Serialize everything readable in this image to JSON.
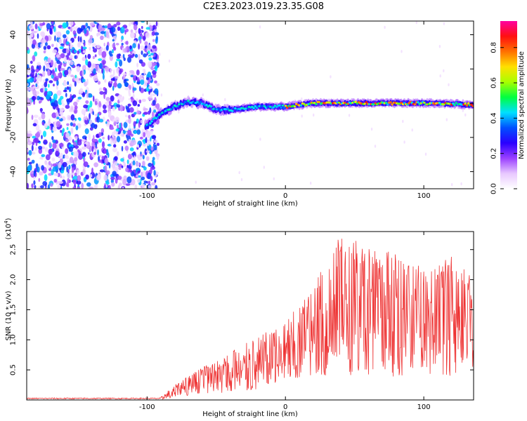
{
  "figure": {
    "title": "C2E3.2023.019.23.35.G08"
  },
  "chart_data": [
    {
      "type": "heatmap",
      "title": "",
      "xlabel": "Height of straight line (km)",
      "ylabel": "Frequency (Hz)",
      "xlim": [
        -187,
        136
      ],
      "ylim": [
        -50,
        48
      ],
      "x_ticks": [
        -100,
        0,
        100
      ],
      "y_ticks": [
        -40,
        -20,
        0,
        20,
        40
      ],
      "grid": false,
      "noise_region_end_km": -95,
      "ridge": {
        "description_points": [
          {
            "x": -100,
            "y": -13
          },
          {
            "x": -90,
            "y": -6
          },
          {
            "x": -80,
            "y": -2
          },
          {
            "x": -70,
            "y": 1
          },
          {
            "x": -60,
            "y": 0
          },
          {
            "x": -50,
            "y": -4
          },
          {
            "x": -40,
            "y": -4
          },
          {
            "x": -30,
            "y": -3
          },
          {
            "x": -20,
            "y": -2
          },
          {
            "x": 0,
            "y": -2
          },
          {
            "x": 20,
            "y": 0
          },
          {
            "x": 50,
            "y": 0
          },
          {
            "x": 80,
            "y": 0
          },
          {
            "x": 110,
            "y": 0
          },
          {
            "x": 136,
            "y": -1
          }
        ]
      },
      "colorbar": {
        "label": "Normalized spectral amplitude",
        "range": [
          0.0,
          0.95
        ],
        "ticks": [
          0.0,
          0.2,
          0.4,
          0.6,
          0.8
        ],
        "tick_labels": [
          "0.0",
          "0.2",
          "0.4",
          "0.6",
          "0.8"
        ],
        "colormap_stops": [
          "#ffffff",
          "#e8c8ff",
          "#9a40ff",
          "#2a00ff",
          "#0050ff",
          "#00e0ff",
          "#00ff40",
          "#a8ff00",
          "#ffe000",
          "#ff7000",
          "#ff1010",
          "#ff00a0"
        ]
      }
    },
    {
      "type": "line",
      "title": "",
      "xlabel": "Height of straight line (km)",
      "ylabel": "SNR (10 * v/v)",
      "y_multiplier_label": "(x10",
      "y_multiplier_exp": "4",
      "xlim": [
        -187,
        136
      ],
      "ylim": [
        0,
        2.8
      ],
      "x_ticks": [
        -100,
        0,
        100
      ],
      "y_ticks": [
        0.5,
        1.0,
        1.5,
        2.0,
        2.5
      ],
      "grid": false,
      "series": [
        {
          "color": "#ee3333",
          "envelope": [
            {
              "x": -187,
              "low": 0.0,
              "high": 0.04
            },
            {
              "x": -90,
              "low": 0.0,
              "high": 0.05
            },
            {
              "x": -80,
              "low": 0.02,
              "high": 0.25
            },
            {
              "x": -60,
              "low": 0.05,
              "high": 0.55
            },
            {
              "x": -40,
              "low": 0.05,
              "high": 0.8
            },
            {
              "x": -20,
              "low": 0.1,
              "high": 1.05
            },
            {
              "x": 0,
              "low": 0.2,
              "high": 1.3
            },
            {
              "x": 20,
              "low": 0.25,
              "high": 1.9
            },
            {
              "x": 40,
              "low": 0.2,
              "high": 2.75
            },
            {
              "x": 60,
              "low": 0.15,
              "high": 2.6
            },
            {
              "x": 80,
              "low": 0.2,
              "high": 2.45
            },
            {
              "x": 100,
              "low": 0.25,
              "high": 2.2
            },
            {
              "x": 120,
              "low": 0.15,
              "high": 2.45
            },
            {
              "x": 136,
              "low": 0.3,
              "high": 2.05
            }
          ]
        }
      ]
    }
  ]
}
